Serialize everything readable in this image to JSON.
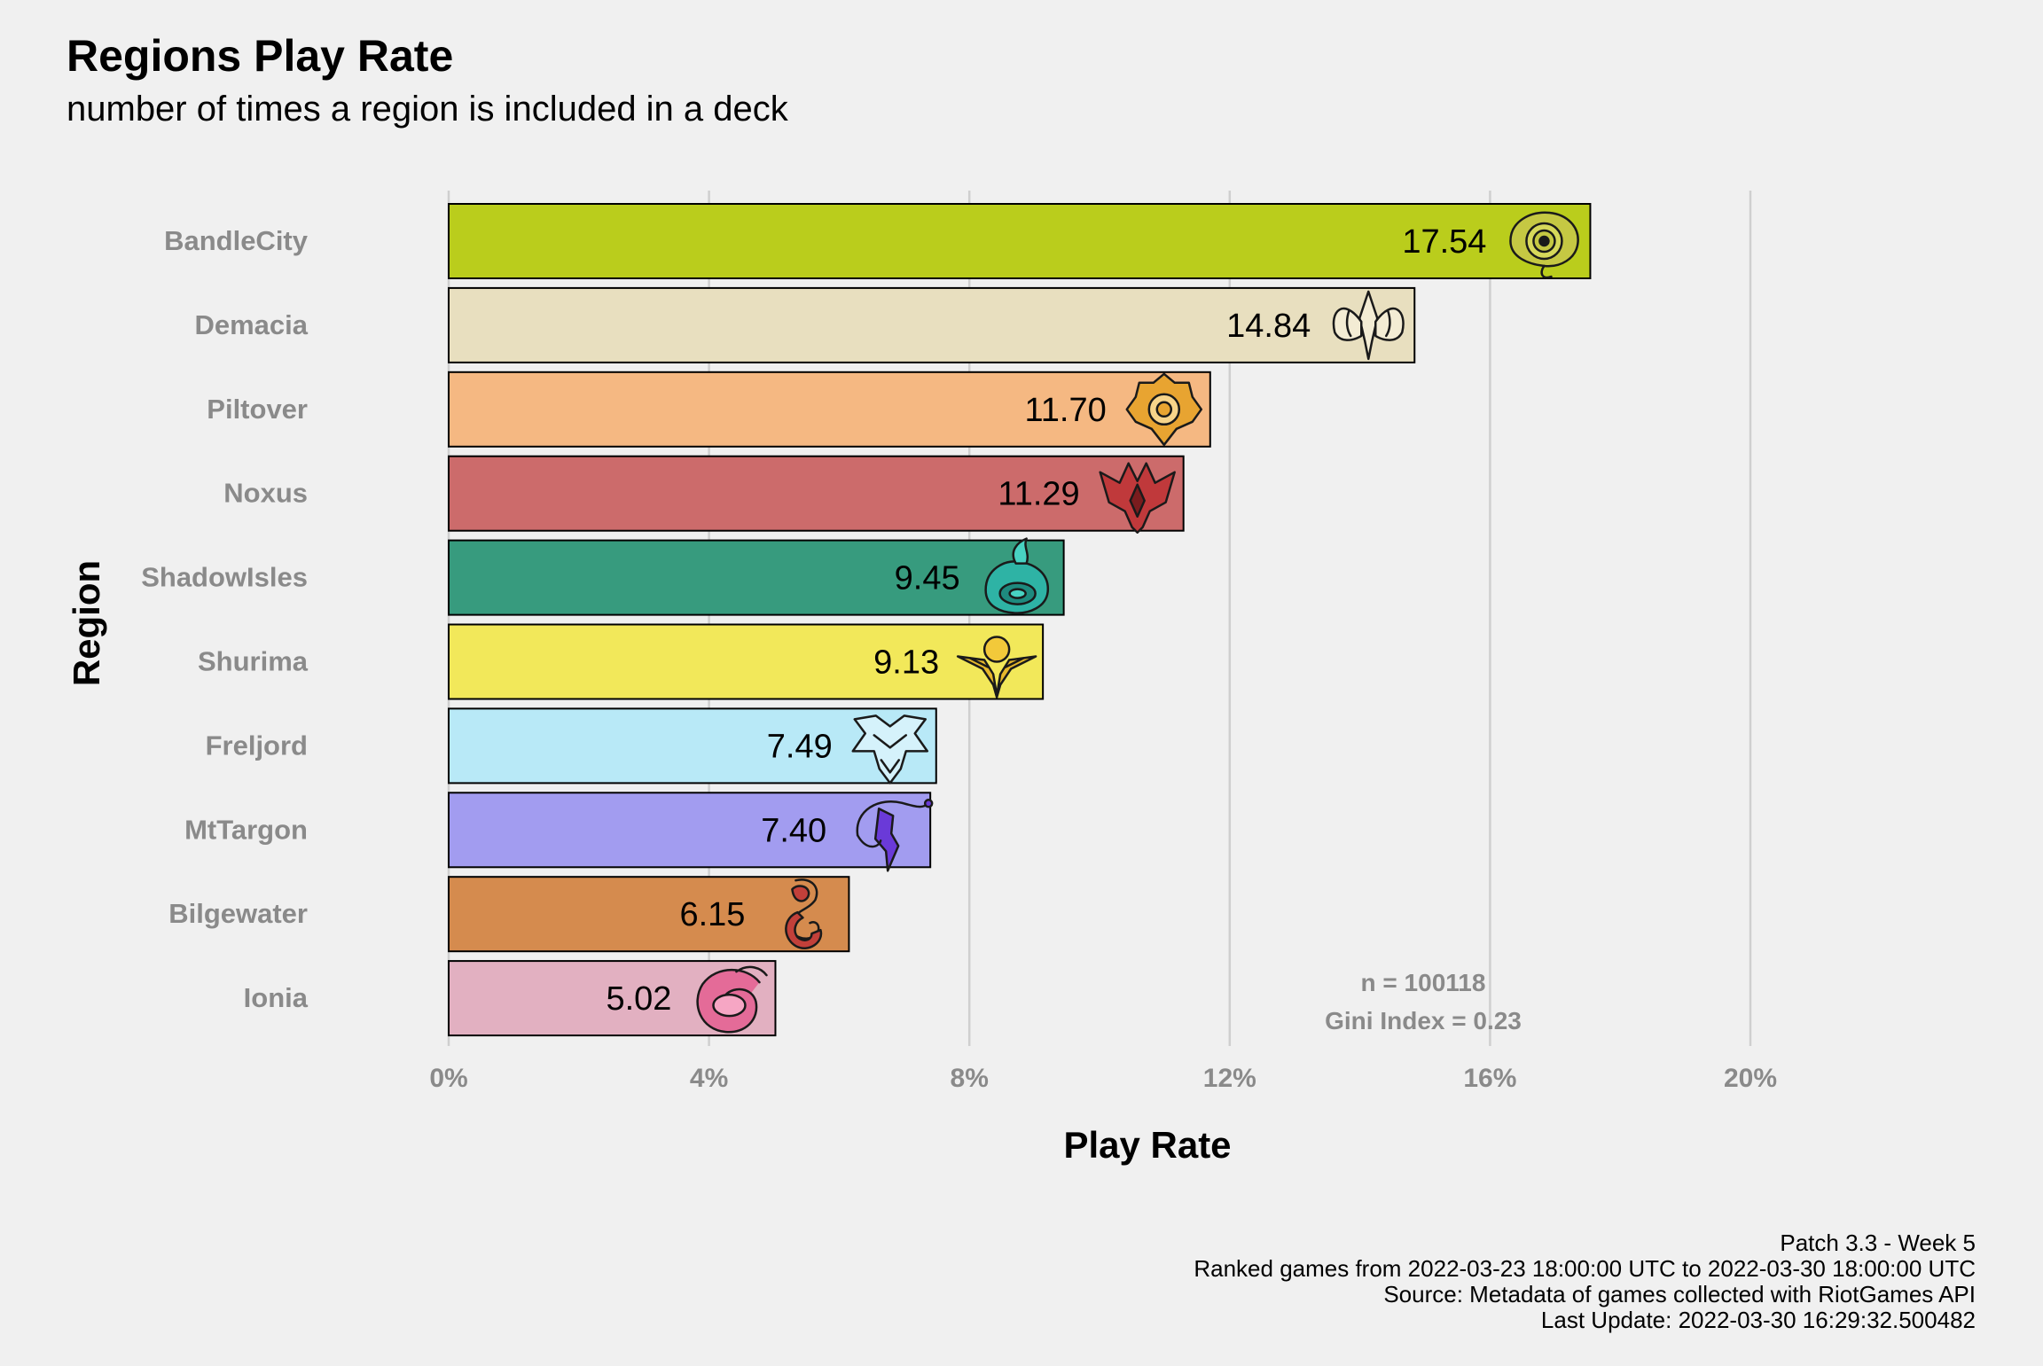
{
  "chart_data": {
    "type": "bar",
    "orientation": "horizontal",
    "title": "Regions Play Rate",
    "subtitle": "number of times a region is included in a deck",
    "xlabel": "Play Rate",
    "ylabel": "Region",
    "xlim": [
      0,
      20
    ],
    "x_ticks": [
      "0%",
      "4%",
      "8%",
      "12%",
      "16%",
      "20%"
    ],
    "x_tick_values": [
      0,
      4,
      8,
      12,
      16,
      20
    ],
    "grid": "vertical major",
    "categories": [
      "BandleCity",
      "Demacia",
      "Piltover",
      "Noxus",
      "ShadowIsles",
      "Shurima",
      "Freljord",
      "MtTargon",
      "Bilgewater",
      "Ionia"
    ],
    "values": [
      17.54,
      14.84,
      11.7,
      11.29,
      9.45,
      9.13,
      7.49,
      7.4,
      6.15,
      5.02
    ],
    "value_labels": [
      "17.54",
      "14.84",
      "11.70",
      "11.29",
      "9.45",
      "9.13",
      "7.49",
      "7.40",
      "6.15",
      "5.02"
    ],
    "colors": [
      "#bacd1c",
      "#e8dfbf",
      "#f5b882",
      "#cc6b6b",
      "#379b7e",
      "#f2e85a",
      "#b8e9f7",
      "#a29cf0",
      "#d58b4e",
      "#e2b0c1"
    ],
    "icons": [
      "bandlecity-icon",
      "demacia-icon",
      "piltover-icon",
      "noxus-icon",
      "shadowisles-icon",
      "shurima-icon",
      "freljord-icon",
      "mttargon-icon",
      "bilgewater-icon",
      "ionia-icon"
    ],
    "annotations": [
      "n = 100118",
      "Gini Index = 0.23"
    ],
    "caption": [
      "Patch 3.3 - Week 5",
      "Ranked games from 2022-03-23 18:00:00 UTC to 2022-03-30 18:00:00 UTC",
      "Source: Metadata of games collected with RiotGames API",
      "Last Update: 2022-03-30 16:29:32.500482"
    ]
  }
}
